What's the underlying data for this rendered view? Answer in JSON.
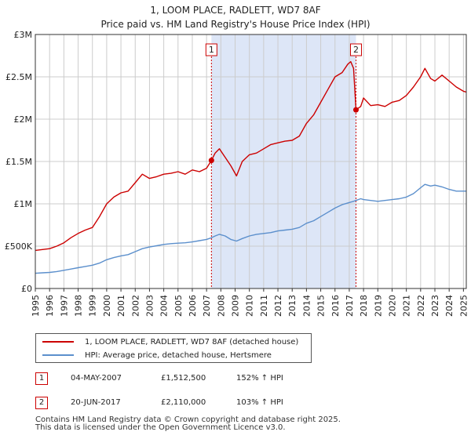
{
  "title": "1, LOOM PLACE, RADLETT, WD7 8AF",
  "subtitle": "Price paid vs. HM Land Registry's House Price Index (HPI)",
  "colors": {
    "property": "#cc0000",
    "hpi": "#5b8fcc",
    "shade": "#dde6f7",
    "grid": "#cccccc",
    "border": "#cc0000"
  },
  "chart_data": {
    "type": "line",
    "title": "Price paid vs. HM Land Registry's House Price Index (HPI)",
    "xlabel": "",
    "ylabel": "",
    "xlim": [
      1995,
      2025.2
    ],
    "ylim": [
      0,
      3000000
    ],
    "y_ticks": [
      {
        "value": 0,
        "label": "£0"
      },
      {
        "value": 500000,
        "label": "£500K"
      },
      {
        "value": 1000000,
        "label": "£1M"
      },
      {
        "value": 1500000,
        "label": "£1.5M"
      },
      {
        "value": 2000000,
        "label": "£2M"
      },
      {
        "value": 2500000,
        "label": "£2.5M"
      },
      {
        "value": 3000000,
        "label": "£3M"
      }
    ],
    "x_ticks": [
      "1995",
      "1996",
      "1997",
      "1998",
      "1999",
      "2000",
      "2001",
      "2002",
      "2003",
      "2004",
      "2005",
      "2006",
      "2007",
      "2008",
      "2009",
      "2010",
      "2011",
      "2012",
      "2013",
      "2014",
      "2015",
      "2016",
      "2017",
      "2018",
      "2019",
      "2020",
      "2021",
      "2022",
      "2023",
      "2024",
      "2025"
    ],
    "shaded_span": [
      2007.34,
      2017.47
    ],
    "series": [
      {
        "name": "1, LOOM PLACE, RADLETT, WD7 8AF (detached house)",
        "color": "#cc0000",
        "x": [
          1995.0,
          1995.5,
          1996.0,
          1996.5,
          1997.0,
          1997.5,
          1998.0,
          1998.5,
          1999.0,
          1999.5,
          2000.0,
          2000.5,
          2001.0,
          2001.5,
          2002.0,
          2002.5,
          2003.0,
          2003.5,
          2004.0,
          2004.5,
          2005.0,
          2005.5,
          2006.0,
          2006.5,
          2007.0,
          2007.34,
          2007.6,
          2007.9,
          2008.3,
          2008.7,
          2009.1,
          2009.5,
          2010.0,
          2010.5,
          2011.0,
          2011.5,
          2012.0,
          2012.5,
          2013.0,
          2013.5,
          2014.0,
          2014.5,
          2015.0,
          2015.5,
          2016.0,
          2016.5,
          2016.9,
          2017.1,
          2017.3,
          2017.47,
          2017.8,
          2018.0,
          2018.5,
          2019.0,
          2019.5,
          2020.0,
          2020.5,
          2021.0,
          2021.5,
          2022.0,
          2022.3,
          2022.7,
          2023.0,
          2023.5,
          2024.0,
          2024.5,
          2025.0,
          2025.2
        ],
        "values": [
          450000,
          460000,
          470000,
          500000,
          540000,
          600000,
          650000,
          690000,
          720000,
          850000,
          1000000,
          1080000,
          1130000,
          1150000,
          1250000,
          1350000,
          1300000,
          1320000,
          1350000,
          1360000,
          1380000,
          1350000,
          1400000,
          1380000,
          1420000,
          1512500,
          1600000,
          1650000,
          1550000,
          1450000,
          1330000,
          1500000,
          1580000,
          1600000,
          1650000,
          1700000,
          1720000,
          1740000,
          1750000,
          1800000,
          1950000,
          2050000,
          2200000,
          2350000,
          2500000,
          2550000,
          2650000,
          2680000,
          2600000,
          2110000,
          2150000,
          2250000,
          2160000,
          2170000,
          2150000,
          2200000,
          2220000,
          2280000,
          2380000,
          2500000,
          2600000,
          2480000,
          2450000,
          2520000,
          2450000,
          2380000,
          2330000,
          2320000
        ]
      },
      {
        "name": "HPI: Average price, detached house, Hertsmere",
        "color": "#5b8fcc",
        "x": [
          1995.0,
          1995.5,
          1996.0,
          1996.5,
          1997.0,
          1997.5,
          1998.0,
          1998.5,
          1999.0,
          1999.5,
          2000.0,
          2000.5,
          2001.0,
          2001.5,
          2002.0,
          2002.5,
          2003.0,
          2003.5,
          2004.0,
          2004.5,
          2005.0,
          2005.5,
          2006.0,
          2006.5,
          2007.0,
          2007.34,
          2007.6,
          2007.9,
          2008.3,
          2008.7,
          2009.1,
          2009.5,
          2010.0,
          2010.5,
          2011.0,
          2011.5,
          2012.0,
          2012.5,
          2013.0,
          2013.5,
          2014.0,
          2014.5,
          2015.0,
          2015.5,
          2016.0,
          2016.5,
          2016.9,
          2017.1,
          2017.3,
          2017.47,
          2017.8,
          2018.0,
          2018.5,
          2019.0,
          2019.5,
          2020.0,
          2020.5,
          2021.0,
          2021.5,
          2022.0,
          2022.3,
          2022.7,
          2023.0,
          2023.5,
          2024.0,
          2024.5,
          2025.0,
          2025.2
        ],
        "values": [
          180000,
          185000,
          190000,
          200000,
          215000,
          230000,
          245000,
          260000,
          275000,
          300000,
          340000,
          365000,
          385000,
          400000,
          435000,
          470000,
          490000,
          505000,
          520000,
          530000,
          535000,
          540000,
          550000,
          565000,
          580000,
          599000,
          620000,
          640000,
          620000,
          580000,
          560000,
          590000,
          620000,
          640000,
          650000,
          660000,
          680000,
          690000,
          700000,
          720000,
          770000,
          800000,
          850000,
          900000,
          950000,
          990000,
          1010000,
          1020000,
          1030000,
          1040000,
          1060000,
          1050000,
          1040000,
          1030000,
          1040000,
          1050000,
          1060000,
          1080000,
          1120000,
          1190000,
          1230000,
          1210000,
          1220000,
          1200000,
          1170000,
          1150000,
          1150000,
          1150000
        ]
      }
    ],
    "markers": [
      {
        "label": "1",
        "x": 2007.34,
        "y": 1512500
      },
      {
        "label": "2",
        "x": 2017.47,
        "y": 2110000
      }
    ]
  },
  "legend": {
    "property_label": "1, LOOM PLACE, RADLETT, WD7 8AF (detached house)",
    "hpi_label": "HPI: Average price, detached house, Hertsmere"
  },
  "sales": [
    {
      "num": "1",
      "date": "04-MAY-2007",
      "price": "£1,512,500",
      "hpi": "152% ↑ HPI"
    },
    {
      "num": "2",
      "date": "20-JUN-2017",
      "price": "£2,110,000",
      "hpi": "103% ↑ HPI"
    }
  ],
  "footer": {
    "line1": "Contains HM Land Registry data © Crown copyright and database right 2025.",
    "line2": "This data is licensed under the Open Government Licence v3.0."
  }
}
